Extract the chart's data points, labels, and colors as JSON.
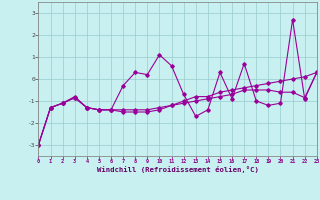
{
  "x": [
    0,
    1,
    2,
    3,
    4,
    5,
    6,
    7,
    8,
    9,
    10,
    11,
    12,
    13,
    14,
    15,
    16,
    17,
    18,
    19,
    20,
    21,
    22,
    23
  ],
  "series1": [
    -3.0,
    -1.3,
    -1.1,
    -0.8,
    -1.3,
    -1.4,
    -1.4,
    -0.3,
    0.3,
    0.2,
    1.1,
    0.6,
    -0.7,
    -1.7,
    -1.4,
    0.3,
    -0.9,
    0.7,
    -1.0,
    -1.2,
    -1.1,
    2.7,
    -0.9,
    0.3
  ],
  "series2": [
    -3.0,
    -1.3,
    -1.1,
    -0.85,
    -1.3,
    -1.4,
    -1.4,
    -1.5,
    -1.5,
    -1.5,
    -1.4,
    -1.2,
    -1.1,
    -1.0,
    -0.9,
    -0.8,
    -0.7,
    -0.5,
    -0.5,
    -0.5,
    -0.6,
    -0.6,
    -0.85,
    0.3
  ],
  "series3": [
    -3.0,
    -1.3,
    -1.1,
    -0.85,
    -1.3,
    -1.4,
    -1.4,
    -1.4,
    -1.4,
    -1.4,
    -1.3,
    -1.2,
    -1.0,
    -0.8,
    -0.8,
    -0.6,
    -0.5,
    -0.4,
    -0.3,
    -0.2,
    -0.1,
    0.0,
    0.1,
    0.3
  ],
  "line_color": "#990099",
  "bg_color": "#c8f0f0",
  "grid_color": "#99cccc",
  "xlabel": "Windchill (Refroidissement éolien,°C)",
  "xlim": [
    0,
    23
  ],
  "ylim": [
    -3.5,
    3.5
  ],
  "yticks": [
    -3,
    -2,
    -1,
    0,
    1,
    2,
    3
  ],
  "xticks": [
    0,
    1,
    2,
    3,
    4,
    5,
    6,
    7,
    8,
    9,
    10,
    11,
    12,
    13,
    14,
    15,
    16,
    17,
    18,
    19,
    20,
    21,
    22,
    23
  ]
}
